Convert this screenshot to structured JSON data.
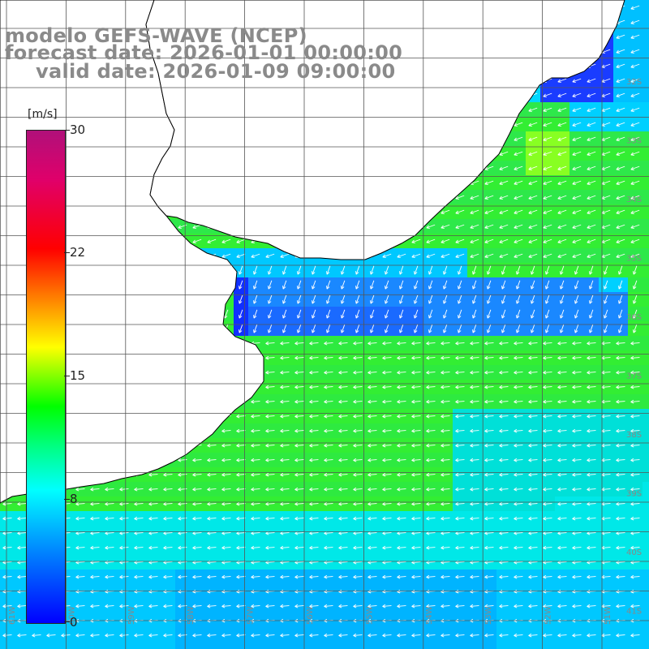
{
  "header": {
    "title_line1": "modelo GEFS-WAVE (NCEP)",
    "title_line2": "forecast date: 2026-01-01 00:00:00",
    "title_line3": "valid date: 2026-01-09 09:00:00"
  },
  "colorbar": {
    "unit": "[m/s]",
    "ticks": [
      "30",
      "22",
      "15",
      "8",
      "0"
    ],
    "tick_values": [
      30,
      22,
      15,
      8,
      0
    ],
    "min": 0,
    "max": 30,
    "colors": [
      "#0000ff",
      "#0080ff",
      "#00ffff",
      "#00ff80",
      "#00ff00",
      "#80ff00",
      "#ffff00",
      "#ff8000",
      "#ff0000",
      "#e0006a",
      "#b0107a"
    ]
  },
  "map": {
    "lat_labels": [
      "32S",
      "33S",
      "34S",
      "35S",
      "36S",
      "37S",
      "38S",
      "39S",
      "40S",
      "41S"
    ],
    "lon_labels": [
      "61W",
      "60W",
      "59W",
      "58W",
      "57W",
      "56W",
      "55W",
      "54W",
      "53W",
      "52W",
      "51W"
    ],
    "ocean_colors": {
      "low": "#1a5cff",
      "mid": "#00c8ff",
      "high": "#33ee33",
      "peak": "#88ff22"
    },
    "land_color": "#ffffff",
    "grid_color": "#666666",
    "arrow_color": "#ffffff"
  }
}
